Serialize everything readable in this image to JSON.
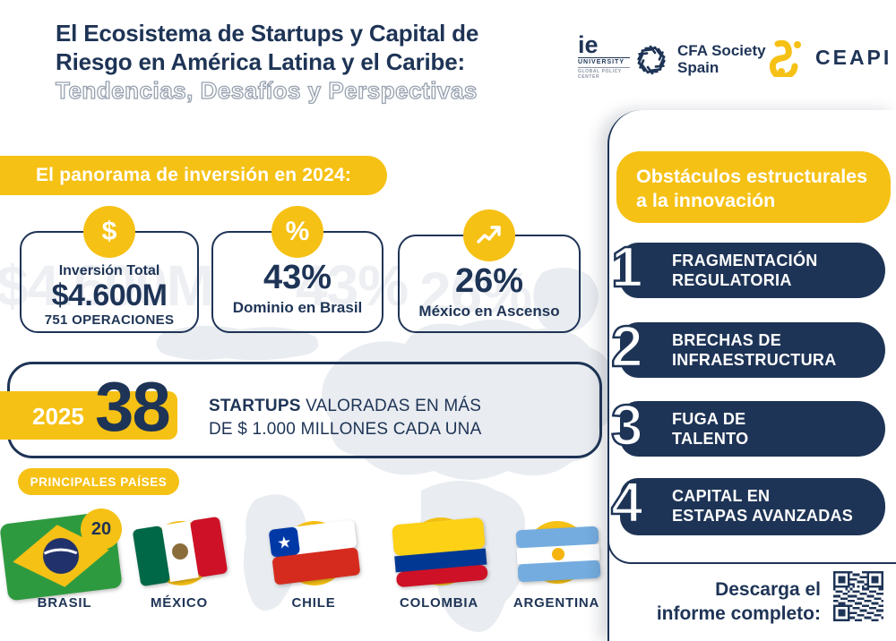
{
  "header": {
    "title_line1": "El Ecosistema de Startups y Capital de",
    "title_line2": "Riesgo en América Latina y el Caribe:",
    "subtitle": "Tendencias, Desafíos y Perspectivas"
  },
  "logos": {
    "ie": {
      "name": "ie",
      "sub1": "UNIVERSITY",
      "sub2": "GLOBAL POLICY CENTER"
    },
    "cfa": {
      "line1": "CFA Society",
      "line2": "Spain"
    },
    "ceapi": {
      "label": "CEAPI"
    }
  },
  "panorama": {
    "heading": "El panorama de inversión en 2024:",
    "ghost_values": [
      "$4.600M",
      "43%",
      "26%"
    ],
    "cards": [
      {
        "icon": "dollar-icon",
        "icon_glyph": "$",
        "top": "Inversión Total",
        "value": "$4.600M",
        "bottom": "751 OPERACIONES"
      },
      {
        "icon": "percent-icon",
        "icon_glyph": "%",
        "value": "43%",
        "bottom": "Dominio en Brasil"
      },
      {
        "icon": "trend-up-icon",
        "value": "26%",
        "bottom": "México en Ascenso"
      }
    ]
  },
  "unicorns": {
    "year": "2025",
    "count": "38",
    "desc_bold": "STARTUPS",
    "desc_rest": " VALORADAS EN MÁS",
    "desc_line2": "DE $ 1.000 MILLONES CADA UNA"
  },
  "countries": {
    "heading": "PRINCIPALES PAÍSES",
    "items": [
      {
        "name": "BRASIL",
        "badge": "20",
        "flag": "brazil-flag"
      },
      {
        "name": "MÉXICO",
        "flag": "mexico-flag"
      },
      {
        "name": "CHILE",
        "flag": "chile-flag"
      },
      {
        "name": "COLOMBIA",
        "flag": "colombia-flag"
      },
      {
        "name": "ARGENTINA",
        "flag": "argentina-flag"
      }
    ]
  },
  "obstacles": {
    "heading_line1": "Obstáculos estructurales",
    "heading_line2": "a la innovación",
    "items": [
      {
        "number": "1",
        "line1": "FRAGMENTACIÓN",
        "line2": "REGULATORIA"
      },
      {
        "number": "2",
        "line1": "BRECHAS DE",
        "line2": "INFRAESTRUCTURA"
      },
      {
        "number": "3",
        "line1": "FUGA DE",
        "line2": "TALENTO"
      },
      {
        "number": "4",
        "line1": "CAPITAL EN",
        "line2": "ESTAPAS AVANZADAS"
      }
    ]
  },
  "download": {
    "line1": "Descarga el",
    "line2": "informe completo:"
  },
  "colors": {
    "navy": "#1e3456",
    "yellow": "#f6c115",
    "ghost": "#edeff3",
    "map": "#e9ecf0"
  }
}
